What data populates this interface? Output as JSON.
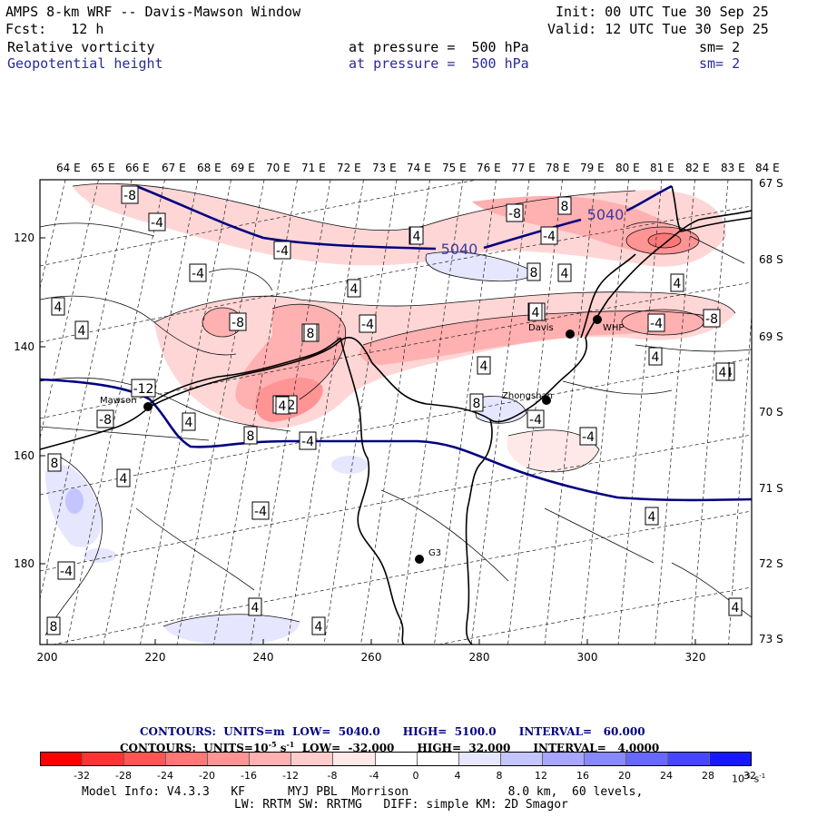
{
  "header": {
    "title": "AMPS 8-km WRF -- Davis-Mawson Window",
    "init": "Init: 00 UTC Tue 30 Sep 25",
    "fcst": "Fcst:   12 h",
    "valid": "Valid: 12 UTC Tue 30 Sep 25",
    "field1": {
      "name": "Relative vorticity",
      "level": "at pressure =  500 hPa",
      "sm": "sm= 2"
    },
    "field2": {
      "name": "Geopotential height",
      "level": "at pressure =  500 hPa",
      "sm": "sm= 2"
    }
  },
  "map": {
    "lon_labels": [
      "64 E",
      "65 E",
      "66 E",
      "67 E",
      "68 E",
      "69 E",
      "70 E",
      "71 E",
      "72 E",
      "73 E",
      "74 E",
      "75 E",
      "76 E",
      "77 E",
      "78 E",
      "79 E",
      "80 E",
      "81 E",
      "82 E",
      "83 E",
      "84 E"
    ],
    "lat_labels": [
      "67 S",
      "68 S",
      "69 S",
      "70 S",
      "71 S",
      "72 S",
      "73 S"
    ],
    "x_ticks": [
      "200",
      "220",
      "240",
      "260",
      "280",
      "300",
      "320"
    ],
    "y_ticks": [
      "120",
      "140",
      "160",
      "180"
    ],
    "stations": [
      {
        "name": "Mawson"
      },
      {
        "name": "Davis"
      },
      {
        "name": "Zhongshan"
      },
      {
        "name": "G3"
      },
      {
        "name": "WHP"
      }
    ],
    "height_contour_labels": [
      "5040",
      "5040"
    ],
    "vort_labels": [
      "-8",
      "-4",
      "-4",
      "-8",
      "8",
      "-8",
      "-4",
      "4",
      "-4",
      "8",
      "8",
      "4",
      "-4",
      "-8",
      "-8",
      "-4",
      "4",
      "-8",
      "-12",
      "-4",
      "8",
      "4",
      "4",
      "-4",
      "4",
      "4",
      "-12",
      "-8",
      "4",
      "4",
      "-4",
      "-4",
      "4",
      "4",
      "-4",
      "8",
      "-4",
      "8",
      "4",
      "4",
      "4",
      "4",
      "8",
      "4",
      "4",
      "8",
      "4"
    ]
  },
  "contours_text": {
    "line1": "CONTOURS:  UNITS=m  LOW=  5040.0      HIGH=  5100.0      INTERVAL=   60.000",
    "line2_a": "CONTOURS:  UNITS=10",
    "line2_exp": "-5",
    "line2_b": " s",
    "line2_exp2": "-1",
    "line2_c": "  LOW=  -32.000      HIGH=  32.000      INTERVAL=   4.0000"
  },
  "colorbar": {
    "labels": [
      "-32",
      "-28",
      "-24",
      "-20",
      "-16",
      "-12",
      "-8",
      "-4",
      "0",
      "4",
      "8",
      "12",
      "16",
      "20",
      "24",
      "28",
      "32"
    ],
    "units": "10",
    "units_exp": "-5",
    "units_s": " s",
    "units_exp2": "-1",
    "colors": [
      "#ff0000",
      "#ff3333",
      "#ff5555",
      "#ff7777",
      "#ff9494",
      "#ffb0b0",
      "#ffcccc",
      "#ffe8e8",
      "#ffffff",
      "#ffffff",
      "#e6e6ff",
      "#c4c4ff",
      "#a6a6ff",
      "#8888ff",
      "#6868ff",
      "#4646ff",
      "#1818ff",
      "#0000ff"
    ]
  },
  "footer": {
    "line1": "Model Info: V4.3.3   KF      MYJ PBL  Morrison              8.0 km,  60 levels,",
    "line2": "LW: RRTM SW: RRTMG   DIFF: simple KM: 2D Smagor"
  }
}
